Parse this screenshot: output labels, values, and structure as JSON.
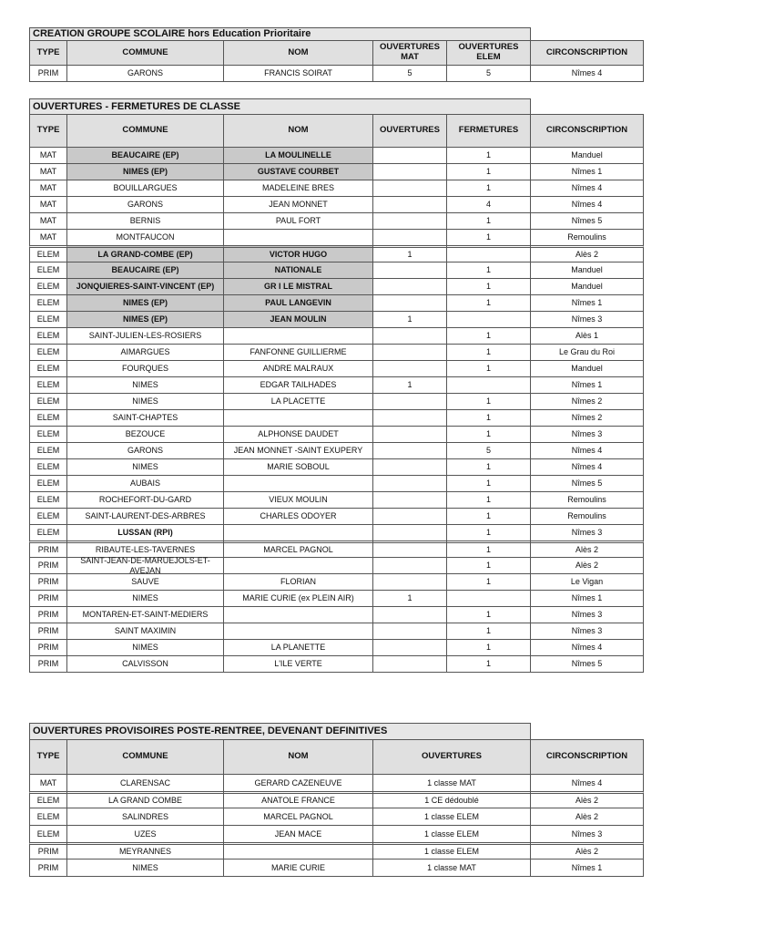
{
  "sections": [
    {
      "title": "CREATION GROUPE SCOLAIRE hors Education Prioritaire",
      "headers": [
        "TYPE",
        "COMMUNE",
        "NOM",
        "OUVERTURES MAT",
        "OUVERTURES ELEM",
        "CIRCONSCRIPTION"
      ],
      "rows": [
        [
          "PRIM",
          "GARONS",
          "FRANCIS SOIRAT",
          5,
          5,
          "Nîmes 4"
        ]
      ]
    },
    {
      "title": "OUVERTURES - FERMETURES DE CLASSE",
      "headers": [
        "TYPE",
        "COMMUNE",
        "NOM",
        "OUVERTURES",
        "FERMETURES",
        "CIRCONSCRIPTION"
      ],
      "rows": [
        [
          "MAT",
          "BEAUCAIRE (EP)",
          "LA MOULINELLE",
          null,
          1,
          "Manduel"
        ],
        [
          "MAT",
          "NIMES (EP)",
          "GUSTAVE COURBET",
          null,
          1,
          "Nîmes 1"
        ],
        [
          "MAT",
          "BOUILLARGUES",
          "MADELEINE BRES",
          null,
          1,
          "Nîmes 4"
        ],
        [
          "MAT",
          "GARONS",
          "JEAN MONNET",
          null,
          4,
          "Nîmes 4"
        ],
        [
          "MAT",
          "BERNIS",
          "PAUL FORT",
          null,
          1,
          "Nîmes 5"
        ],
        [
          "MAT",
          "MONTFAUCON",
          null,
          null,
          1,
          "Remoulins"
        ],
        [
          "ELEM",
          "LA GRAND-COMBE (EP)",
          "VICTOR HUGO",
          1,
          null,
          "Alès 2"
        ],
        [
          "ELEM",
          "BEAUCAIRE (EP)",
          "NATIONALE",
          null,
          1,
          "Manduel"
        ],
        [
          "ELEM",
          "JONQUIERES-SAINT-VINCENT (EP)",
          "GR I LE MISTRAL",
          null,
          1,
          "Manduel"
        ],
        [
          "ELEM",
          "NIMES (EP)",
          "PAUL LANGEVIN",
          null,
          1,
          "Nîmes 1"
        ],
        [
          "ELEM",
          "NIMES (EP)",
          "JEAN MOULIN",
          1,
          null,
          "Nîmes 3"
        ],
        [
          "ELEM",
          "SAINT-JULIEN-LES-ROSIERS",
          null,
          null,
          1,
          "Alès 1"
        ],
        [
          "ELEM",
          "AIMARGUES",
          "FANFONNE GUILLIERME",
          null,
          1,
          "Le Grau du Roi"
        ],
        [
          "ELEM",
          "FOURQUES",
          "ANDRE MALRAUX",
          null,
          1,
          "Manduel"
        ],
        [
          "ELEM",
          "NIMES",
          "EDGAR TAILHADES",
          1,
          null,
          "Nîmes 1"
        ],
        [
          "ELEM",
          "NIMES",
          "LA PLACETTE",
          null,
          1,
          "Nîmes 2"
        ],
        [
          "ELEM",
          "SAINT-CHAPTES",
          null,
          null,
          1,
          "Nîmes 2"
        ],
        [
          "ELEM",
          "BEZOUCE",
          "ALPHONSE DAUDET",
          null,
          1,
          "Nîmes 3"
        ],
        [
          "ELEM",
          "GARONS",
          "JEAN MONNET -SAINT EXUPERY",
          null,
          5,
          "Nîmes 4"
        ],
        [
          "ELEM",
          "NIMES",
          "MARIE SOBOUL",
          null,
          1,
          "Nîmes 4"
        ],
        [
          "ELEM",
          "AUBAIS",
          null,
          null,
          1,
          "Nîmes 5"
        ],
        [
          "ELEM",
          "ROCHEFORT-DU-GARD",
          "VIEUX MOULIN",
          null,
          1,
          "Remoulins"
        ],
        [
          "ELEM",
          "SAINT-LAURENT-DES-ARBRES",
          "CHARLES ODOYER",
          null,
          1,
          "Remoulins"
        ],
        [
          "ELEM",
          "LUSSAN (RPI)",
          null,
          null,
          1,
          "Nîmes 3"
        ],
        [
          "PRIM",
          "RIBAUTE-LES-TAVERNES",
          "MARCEL PAGNOL",
          null,
          1,
          "Alès 2"
        ],
        [
          "PRIM",
          "SAINT-JEAN-DE-MARUEJOLS-ET-AVEJAN",
          null,
          null,
          1,
          "Alès 2"
        ],
        [
          "PRIM",
          "SAUVE",
          "FLORIAN",
          null,
          1,
          "Le Vigan"
        ],
        [
          "PRIM",
          "NIMES",
          "MARIE CURIE (ex PLEIN AIR)",
          1,
          null,
          "Nîmes 1"
        ],
        [
          "PRIM",
          "MONTAREN-ET-SAINT-MEDIERS",
          null,
          null,
          1,
          "Nîmes 3"
        ],
        [
          "PRIM",
          "SAINT MAXIMIN",
          null,
          null,
          1,
          "Nîmes 3"
        ],
        [
          "PRIM",
          "NIMES",
          "LA PLANETTE",
          null,
          1,
          "Nîmes 4"
        ],
        [
          "PRIM",
          "CALVISSON",
          "L'ILE VERTE",
          null,
          1,
          "Nîmes 5"
        ]
      ]
    },
    {
      "title": "OUVERTURES PROVISOIRES POSTE-RENTREE, DEVENANT DEFINITIVES",
      "headers": [
        "TYPE",
        "COMMUNE",
        "NOM",
        "OUVERTURES",
        "CIRCONSCRIPTION"
      ],
      "rows": [
        [
          "MAT",
          "CLARENSAC",
          "GERARD CAZENEUVE",
          "1 classe MAT",
          "Nîmes 4"
        ],
        [
          "ELEM",
          "LA GRAND COMBE",
          "ANATOLE FRANCE",
          "1 CE dédoublé",
          "Alès 2"
        ],
        [
          "ELEM",
          "SALINDRES",
          "MARCEL PAGNOL",
          "1 classe ELEM",
          "Alès 2"
        ],
        [
          "ELEM",
          "UZES",
          "JEAN MACE",
          "1 classe ELEM",
          "Nîmes 3"
        ],
        [
          "PRIM",
          "MEYRANNES",
          null,
          "1 classe ELEM",
          "Alès 2"
        ],
        [
          "PRIM",
          "NIMES",
          "MARIE CURIE",
          "1 classe MAT",
          "Nîmes 1"
        ]
      ]
    }
  ]
}
